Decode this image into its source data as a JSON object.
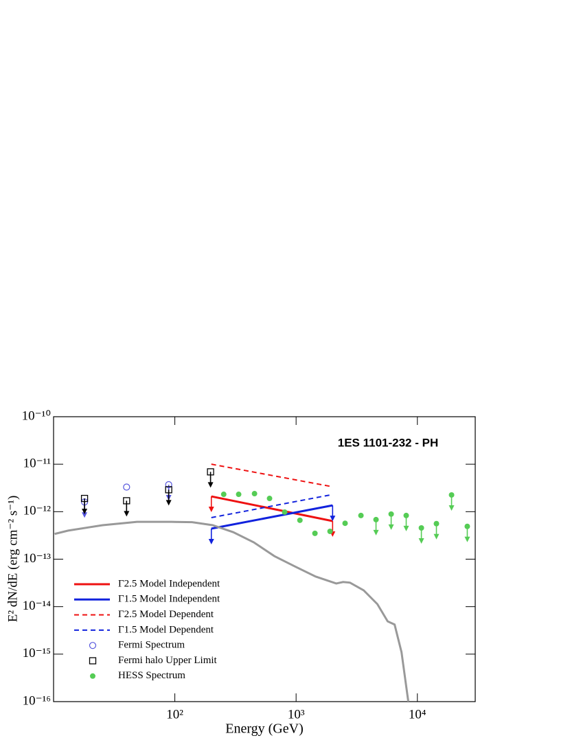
{
  "chart_data": {
    "type": "scatter",
    "title": "1ES 1101-232 - PH",
    "x_label": "Energy (GeV)",
    "y_label": "E² dN/dE (erg cm⁻² s⁻¹)",
    "log_x": true,
    "log_y": true,
    "legend": "lower left",
    "xlim": [
      10,
      30000
    ],
    "xticks": [
      {
        "value": 100,
        "label": "10²"
      },
      {
        "value": 1000,
        "label": "10³"
      },
      {
        "value": 10000,
        "label": "10⁴"
      }
    ],
    "ylim": [
      1e-16,
      1e-10
    ],
    "yticks": [
      {
        "value": 1e-16,
        "label": "10⁻¹⁶"
      },
      {
        "value": 1e-15,
        "label": "10⁻¹⁵"
      },
      {
        "value": 1e-14,
        "label": "10⁻¹⁴"
      },
      {
        "value": 1e-13,
        "label": "10⁻¹³"
      },
      {
        "value": 1e-12,
        "label": "10⁻¹²"
      },
      {
        "value": 1e-11,
        "label": "10⁻¹¹"
      },
      {
        "value": 1e-10,
        "label": "10⁻¹⁰"
      }
    ],
    "series": [
      {
        "name": "Γ2.5 Model Independent",
        "color": "#ee1111",
        "kind": "line",
        "style": "solid",
        "upper_limit": true,
        "x": [
          200,
          2000
        ],
        "values": [
          2.1e-12,
          6.35e-13
        ]
      },
      {
        "name": "Γ1.5 Model Independent",
        "color": "#1122dd",
        "kind": "line",
        "style": "solid",
        "upper_limit": true,
        "x": [
          200,
          2000
        ],
        "values": [
          4.4e-13,
          1.36e-12
        ]
      },
      {
        "name": "Γ2.5 Model Dependent",
        "color": "#ee1111",
        "kind": "line",
        "style": "dashed",
        "upper_limit": false,
        "x": [
          200,
          2000
        ],
        "values": [
          1e-11,
          3.35e-12
        ]
      },
      {
        "name": "Γ1.5 Model Dependent",
        "color": "#1122dd",
        "kind": "line",
        "style": "dashed",
        "upper_limit": false,
        "x": [
          200,
          2000
        ],
        "values": [
          7.5e-13,
          2.3e-12
        ]
      },
      {
        "name": "Fermi Spectrum",
        "color": "#5555dd",
        "kind": "points",
        "marker": "circle",
        "x": [
          18,
          40,
          89
        ],
        "values": [
          1.6e-12,
          3.3e-12,
          3.7e-12
        ],
        "upper_limit": [
          true,
          false,
          true
        ]
      },
      {
        "name": "Fermi halo Upper Limit",
        "color": "#000000",
        "kind": "points",
        "marker": "square",
        "x": [
          18,
          40,
          89,
          197
        ],
        "values": [
          1.9e-12,
          1.7e-12,
          2.9e-12,
          6.9e-12
        ],
        "upper_limit": [
          true,
          true,
          true,
          true
        ]
      },
      {
        "name": "HESS Spectrum",
        "color": "#55cc55",
        "kind": "points",
        "marker": "dot",
        "x": [
          253,
          336,
          454,
          604,
          805,
          1075,
          1430,
          1905,
          2535,
          3425,
          4560,
          6080,
          8090,
          10790,
          14360,
          19140,
          25800
        ],
        "values": [
          2.32e-12,
          2.32e-12,
          2.4e-12,
          1.9e-12,
          9.8e-13,
          6.6e-13,
          3.5e-13,
          3.85e-13,
          5.7e-13,
          8.3e-13,
          6.8e-13,
          8.9e-13,
          8.3e-13,
          4.55e-13,
          5.6e-13,
          2.25e-12,
          4.9e-13
        ],
        "upper_limit": [
          false,
          false,
          false,
          false,
          false,
          false,
          false,
          false,
          false,
          false,
          true,
          true,
          true,
          true,
          true,
          true,
          true
        ]
      },
      {
        "color": "#999999",
        "kind": "line",
        "style": "solid",
        "upper_limit": false,
        "x": [
          10.2,
          13.2,
          25.4,
          48.8,
          93.7,
          139,
          205,
          303,
          448,
          662,
          980,
          1449,
          2143,
          2440,
          2780,
          3610,
          4680,
          5690,
          6490,
          7400,
          8420
        ],
        "values": [
          3.4e-13,
          4e-13,
          5.2e-13,
          6.1e-13,
          6.1e-13,
          6e-13,
          5.2e-13,
          3.7e-13,
          2.26e-13,
          1.16e-13,
          7e-14,
          4.3e-14,
          3.07e-14,
          3.3e-14,
          3.2e-14,
          2.2e-14,
          1.13e-14,
          4.9e-15,
          4.2e-15,
          1.1e-15,
          1e-16
        ]
      }
    ]
  }
}
